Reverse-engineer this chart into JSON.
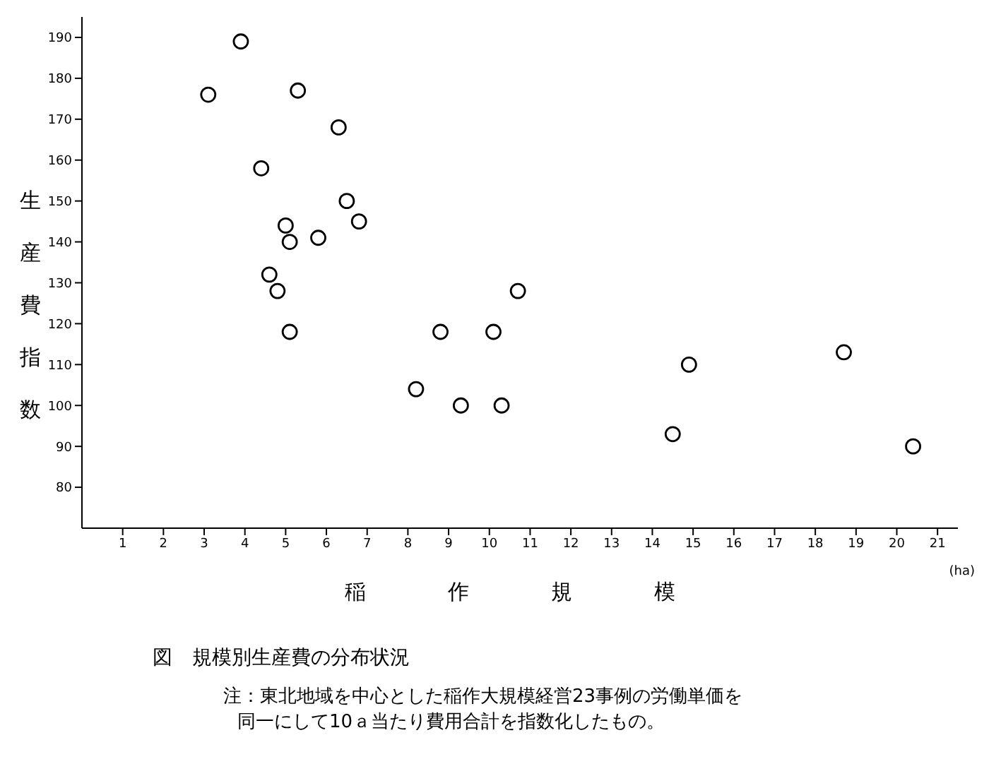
{
  "chart_data": {
    "type": "scatter",
    "title": "図　規模別生産費の分布状況",
    "xlabel": "稲作規模",
    "ylabel": "生産費指数",
    "annotations": [
      "(ha)",
      "注：東北地域を中心とした稲作大規模経営23事例の労働単価を",
      "同一にして10ａ当たり費用合計を指数化したもの。"
    ],
    "x": [
      3.1,
      3.9,
      5.3,
      6.3,
      4.4,
      6.5,
      6.8,
      5.0,
      5.8,
      5.1,
      4.6,
      4.8,
      5.1,
      8.8,
      8.2,
      9.3,
      10.1,
      10.7,
      10.3,
      14.5,
      14.9,
      18.7,
      20.4
    ],
    "series": [
      {
        "color": "#000000",
        "values": [
          176,
          189,
          177,
          168,
          158,
          150,
          145,
          144,
          141,
          140,
          132,
          128,
          118,
          118,
          104,
          100,
          118,
          128,
          100,
          93,
          110,
          113,
          90
        ]
      }
    ],
    "xlim": [
      0,
      21.5
    ],
    "xticks": [
      1,
      2,
      3,
      4,
      5,
      6,
      7,
      8,
      9,
      10,
      11,
      12,
      13,
      14,
      15,
      16,
      17,
      18,
      19,
      20,
      21
    ],
    "ylim": [
      70,
      195
    ],
    "yticks": [
      80,
      90,
      100,
      110,
      120,
      130,
      140,
      150,
      160,
      170,
      180,
      190
    ],
    "grid": false,
    "legend": false,
    "marker": "circle"
  }
}
